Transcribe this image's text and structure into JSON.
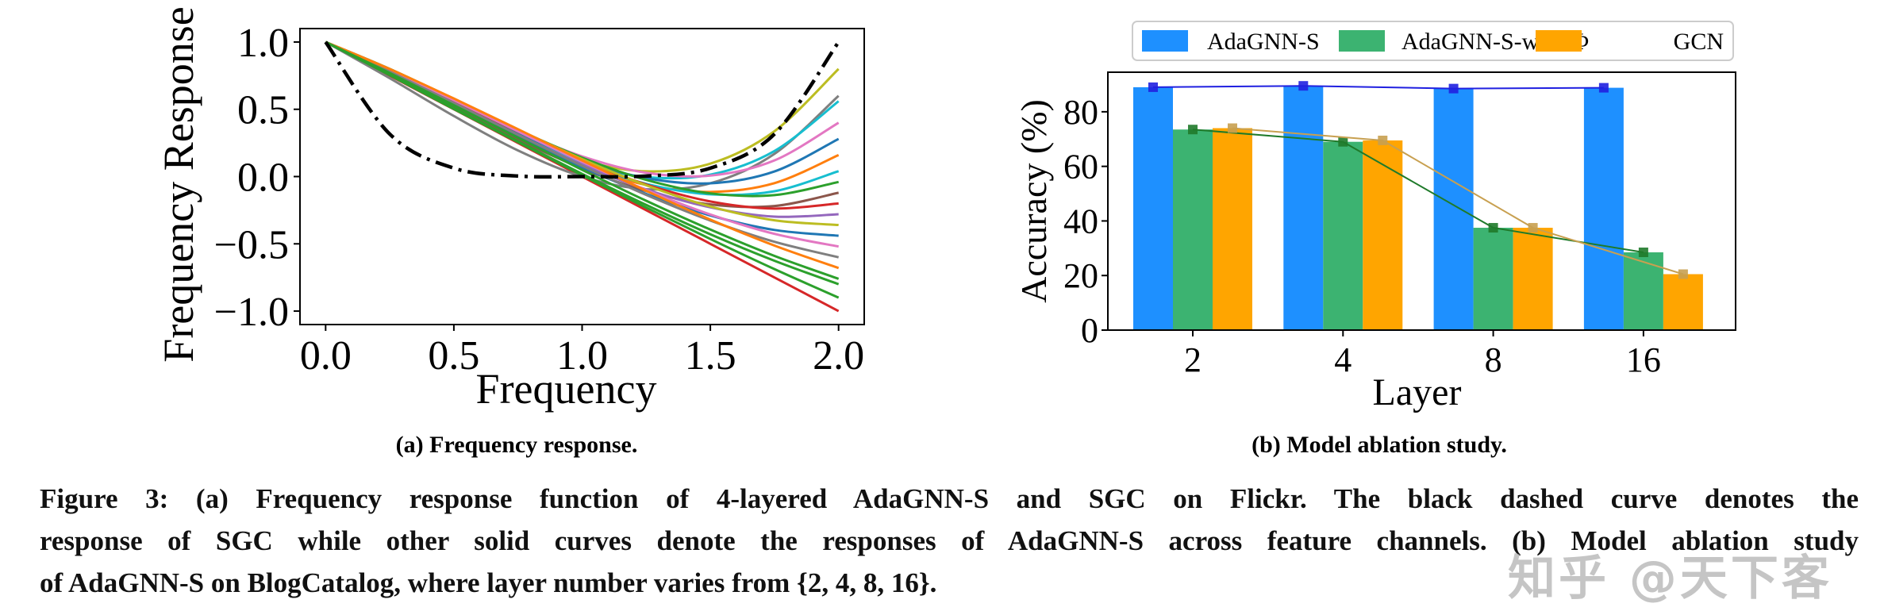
{
  "chart_data": [
    {
      "type": "line",
      "subcaption": "(a) Frequency response.",
      "xlabel": "Frequency",
      "ylabel": "Frequency Response",
      "xlim": [
        -0.1,
        2.1
      ],
      "ylim": [
        -1.1,
        1.1
      ],
      "xticks": [
        "0.0",
        "0.5",
        "1.0",
        "1.5",
        "2.0"
      ],
      "yticks": [
        "1.0",
        "0.5",
        "0.0",
        "−0.5",
        "−1.0"
      ],
      "grid": false,
      "x": [
        0,
        0.25,
        0.5,
        0.75,
        1.0,
        1.25,
        1.5,
        1.75,
        2.0
      ],
      "sgc": {
        "color": "#000000",
        "style": "dash-dot",
        "values": [
          1,
          0.316,
          0.0625,
          0.0039,
          0,
          0.0039,
          0.0625,
          0.316,
          1
        ]
      },
      "series": [
        {
          "color": "#d62728",
          "values": [
            1,
            0.75,
            0.5,
            0.25,
            0,
            -0.25,
            -0.5,
            -0.75,
            -1
          ]
        },
        {
          "color": "#bcbd22",
          "values": [
            1,
            0.782,
            0.534,
            0.3,
            0.12,
            0.039,
            0.096,
            0.337,
            0.8
          ]
        },
        {
          "color": "#7f7f7f",
          "values": [
            1,
            0.731,
            0.45,
            0.194,
            0,
            -0.094,
            -0.05,
            0.169,
            0.6
          ]
        },
        {
          "color": "#17becf",
          "values": [
            1,
            0.776,
            0.526,
            0.289,
            0.1,
            -0.004,
            0.014,
            0.19,
            0.56
          ]
        },
        {
          "color": "#e377c2",
          "values": [
            1,
            0.8,
            0.569,
            0.342,
            0.15,
            0.028,
            0.007,
            0.12,
            0.4
          ]
        },
        {
          "color": "#1f77b4",
          "values": [
            1,
            0.788,
            0.55,
            0.318,
            0.12,
            -0.012,
            -0.05,
            0.038,
            0.28
          ]
        },
        {
          "color": "#ff7f0e",
          "values": [
            1,
            0.771,
            0.524,
            0.284,
            0.08,
            -0.062,
            -0.114,
            -0.049,
            0.16
          ]
        },
        {
          "color": "#17becf",
          "values": [
            1,
            0.782,
            0.542,
            0.307,
            0.1,
            -0.054,
            -0.132,
            -0.109,
            0.04
          ]
        },
        {
          "color": "#2ca02c",
          "values": [
            1,
            0.8,
            0.575,
            0.347,
            0.14,
            -0.025,
            -0.125,
            -0.138,
            -0.04
          ]
        },
        {
          "color": "#8c564b",
          "values": [
            1,
            0.766,
            0.517,
            0.275,
            0.06,
            -0.108,
            -0.207,
            -0.219,
            -0.12
          ]
        },
        {
          "color": "#d62728",
          "values": [
            1,
            0.794,
            0.565,
            0.335,
            0.12,
            -0.059,
            -0.185,
            -0.238,
            -0.2
          ]
        },
        {
          "color": "#9467bd",
          "values": [
            1,
            0.781,
            0.545,
            0.309,
            0.09,
            -0.096,
            -0.229,
            -0.298,
            -0.28
          ]
        },
        {
          "color": "#bcbd22",
          "values": [
            1,
            0.799,
            0.578,
            0.349,
            0.13,
            -0.065,
            -0.222,
            -0.325,
            -0.36
          ]
        },
        {
          "color": "#1f77b4",
          "values": [
            1,
            0.774,
            0.535,
            0.296,
            0.07,
            -0.129,
            -0.289,
            -0.397,
            -0.44
          ]
        },
        {
          "color": "#e377c2",
          "values": [
            1,
            0.792,
            0.568,
            0.336,
            0.11,
            -0.1,
            -0.282,
            -0.426,
            -0.52
          ]
        },
        {
          "color": "#7f7f7f",
          "values": [
            1,
            0.78,
            0.547,
            0.311,
            0.08,
            -0.136,
            -0.327,
            -0.485,
            -0.6
          ]
        },
        {
          "color": "#ff7f0e",
          "values": [
            1,
            0.799,
            0.58,
            0.352,
            0.12,
            -0.106,
            -0.32,
            -0.513,
            -0.68
          ]
        },
        {
          "color": "#2ca02c",
          "values": [
            1,
            0.769,
            0.53,
            0.289,
            0.05,
            -0.18,
            -0.394,
            -0.59,
            -0.76
          ]
        },
        {
          "color": "#2ca02c",
          "values": [
            1,
            0.757,
            0.509,
            0.262,
            0.02,
            -0.211,
            -0.429,
            -0.626,
            -0.8
          ]
        },
        {
          "color": "#2ca02c",
          "values": [
            1,
            0.754,
            0.502,
            0.256,
            0.01,
            -0.231,
            -0.464,
            -0.688,
            -0.9
          ]
        }
      ]
    },
    {
      "type": "bar",
      "subcaption": "(b) Model ablation study.",
      "xlabel": "Layer",
      "ylabel": "Accuracy (%)",
      "categories": [
        "2",
        "4",
        "8",
        "16"
      ],
      "yticks": [
        "0",
        "20",
        "40",
        "60",
        "80"
      ],
      "ylim": [
        0,
        94.5
      ],
      "grid": false,
      "legend_position": "top",
      "series": [
        {
          "name": "AdaGNN-S",
          "color": "#1e90ff",
          "line_color": "#2020e0",
          "values": [
            89.0,
            89.5,
            88.5,
            88.8
          ]
        },
        {
          "name": "AdaGNN-S-w/o -Φ",
          "color": "#3cb371",
          "line_color": "#1f7a2a",
          "values": [
            73.5,
            69.0,
            37.5,
            28.5
          ]
        },
        {
          "name": "GCN",
          "color": "#ffa500",
          "line_color": "#c8a050",
          "values": [
            74.0,
            69.5,
            37.5,
            20.5
          ]
        }
      ]
    }
  ],
  "caption": {
    "lines": [
      "Figure 3: (a) Frequency response function of 4-layered AdaGNN-S and SGC on Flickr. The black dashed curve denotes the",
      "response of SGC while other solid curves denote the responses of AdaGNN-S across feature channels. (b) Model ablation study",
      "of AdaGNN-S on BlogCatalog, where layer number varies from {2, 4, 8, 16}."
    ]
  },
  "watermark": "知乎 @天下客"
}
